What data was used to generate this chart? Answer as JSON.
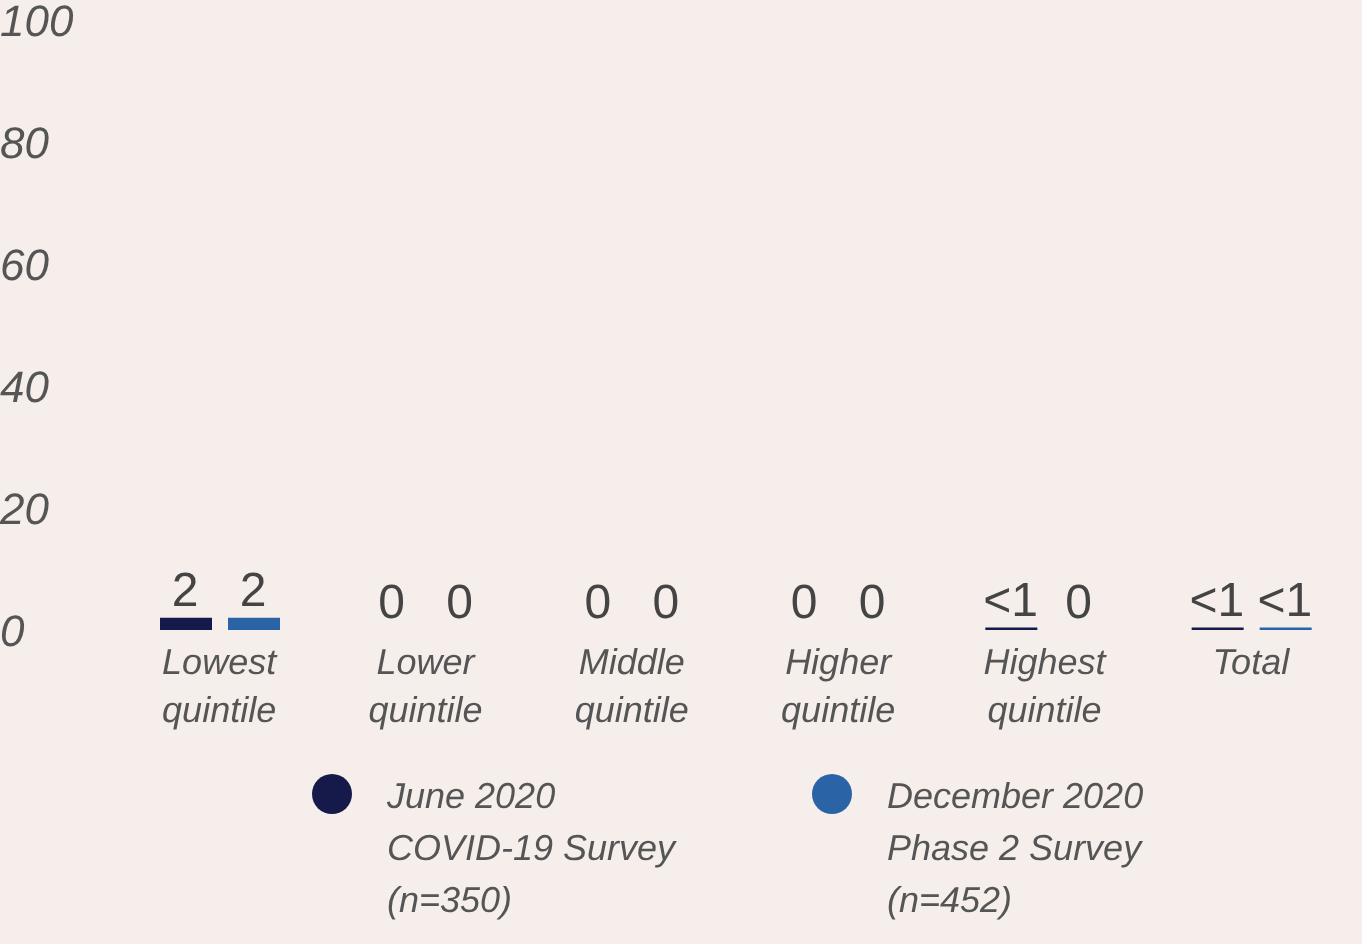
{
  "chart_data": {
    "type": "bar",
    "categories": [
      "Lowest quintile",
      "Lower quintile",
      "Middle quintile",
      "Higher quintile",
      "Highest quintile",
      "Total"
    ],
    "series": [
      {
        "name": "June 2020 COVID-19 Survey (n=350)",
        "color": "#161a4a",
        "values": [
          2,
          0,
          0,
          0,
          0.4,
          0.4
        ],
        "value_labels": [
          "2",
          "0",
          "0",
          "0",
          "<1",
          "<1"
        ]
      },
      {
        "name": "December 2020 Phase 2 Survey (n=452)",
        "color": "#2a64a6",
        "values": [
          2,
          0,
          0,
          0,
          0,
          0.4
        ],
        "value_labels": [
          "2",
          "0",
          "0",
          "0",
          "0",
          "<1"
        ]
      }
    ],
    "ylim": [
      0,
      100
    ],
    "yticks": [
      0,
      20,
      40,
      60,
      80,
      100
    ],
    "grid": false,
    "legend": "bottom"
  }
}
